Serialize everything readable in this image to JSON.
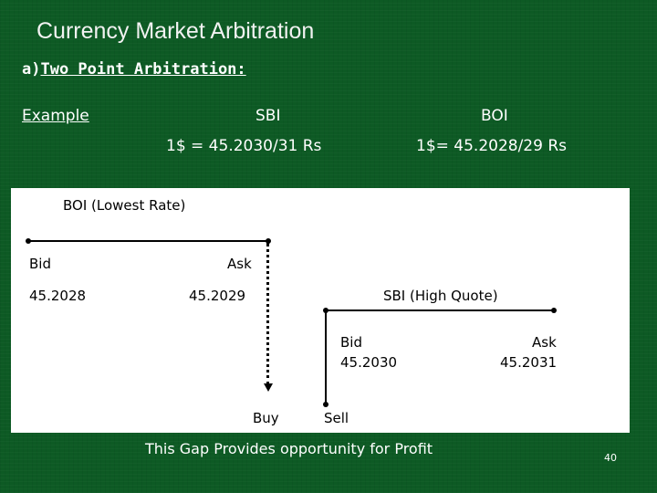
{
  "slide": {
    "title": "Currency Market Arbitration",
    "section_label": "a)",
    "section_title": "Two Point Arbitration:",
    "example_label": "Example",
    "bank_a": "SBI",
    "bank_b": "BOI",
    "rate_a": "1$ = 45.2030/31 Rs",
    "rate_b": "1$= 45.2028/29 Rs",
    "footer_note": "This Gap Provides opportunity for Profit",
    "page_number": "40"
  },
  "diagram": {
    "boi_heading": "BOI (Lowest Rate)",
    "boi_bid_label": "Bid",
    "boi_ask_label": "Ask",
    "boi_bid_value": "45.2028",
    "boi_ask_value": "45.2029",
    "sbi_heading": "SBI (High Quote)",
    "sbi_bid_label": "Bid",
    "sbi_bid_value": "45.2030",
    "sbi_ask_label": "Ask",
    "sbi_ask_value": "45.2031",
    "buy_label": "Buy",
    "sell_label": "Sell"
  }
}
